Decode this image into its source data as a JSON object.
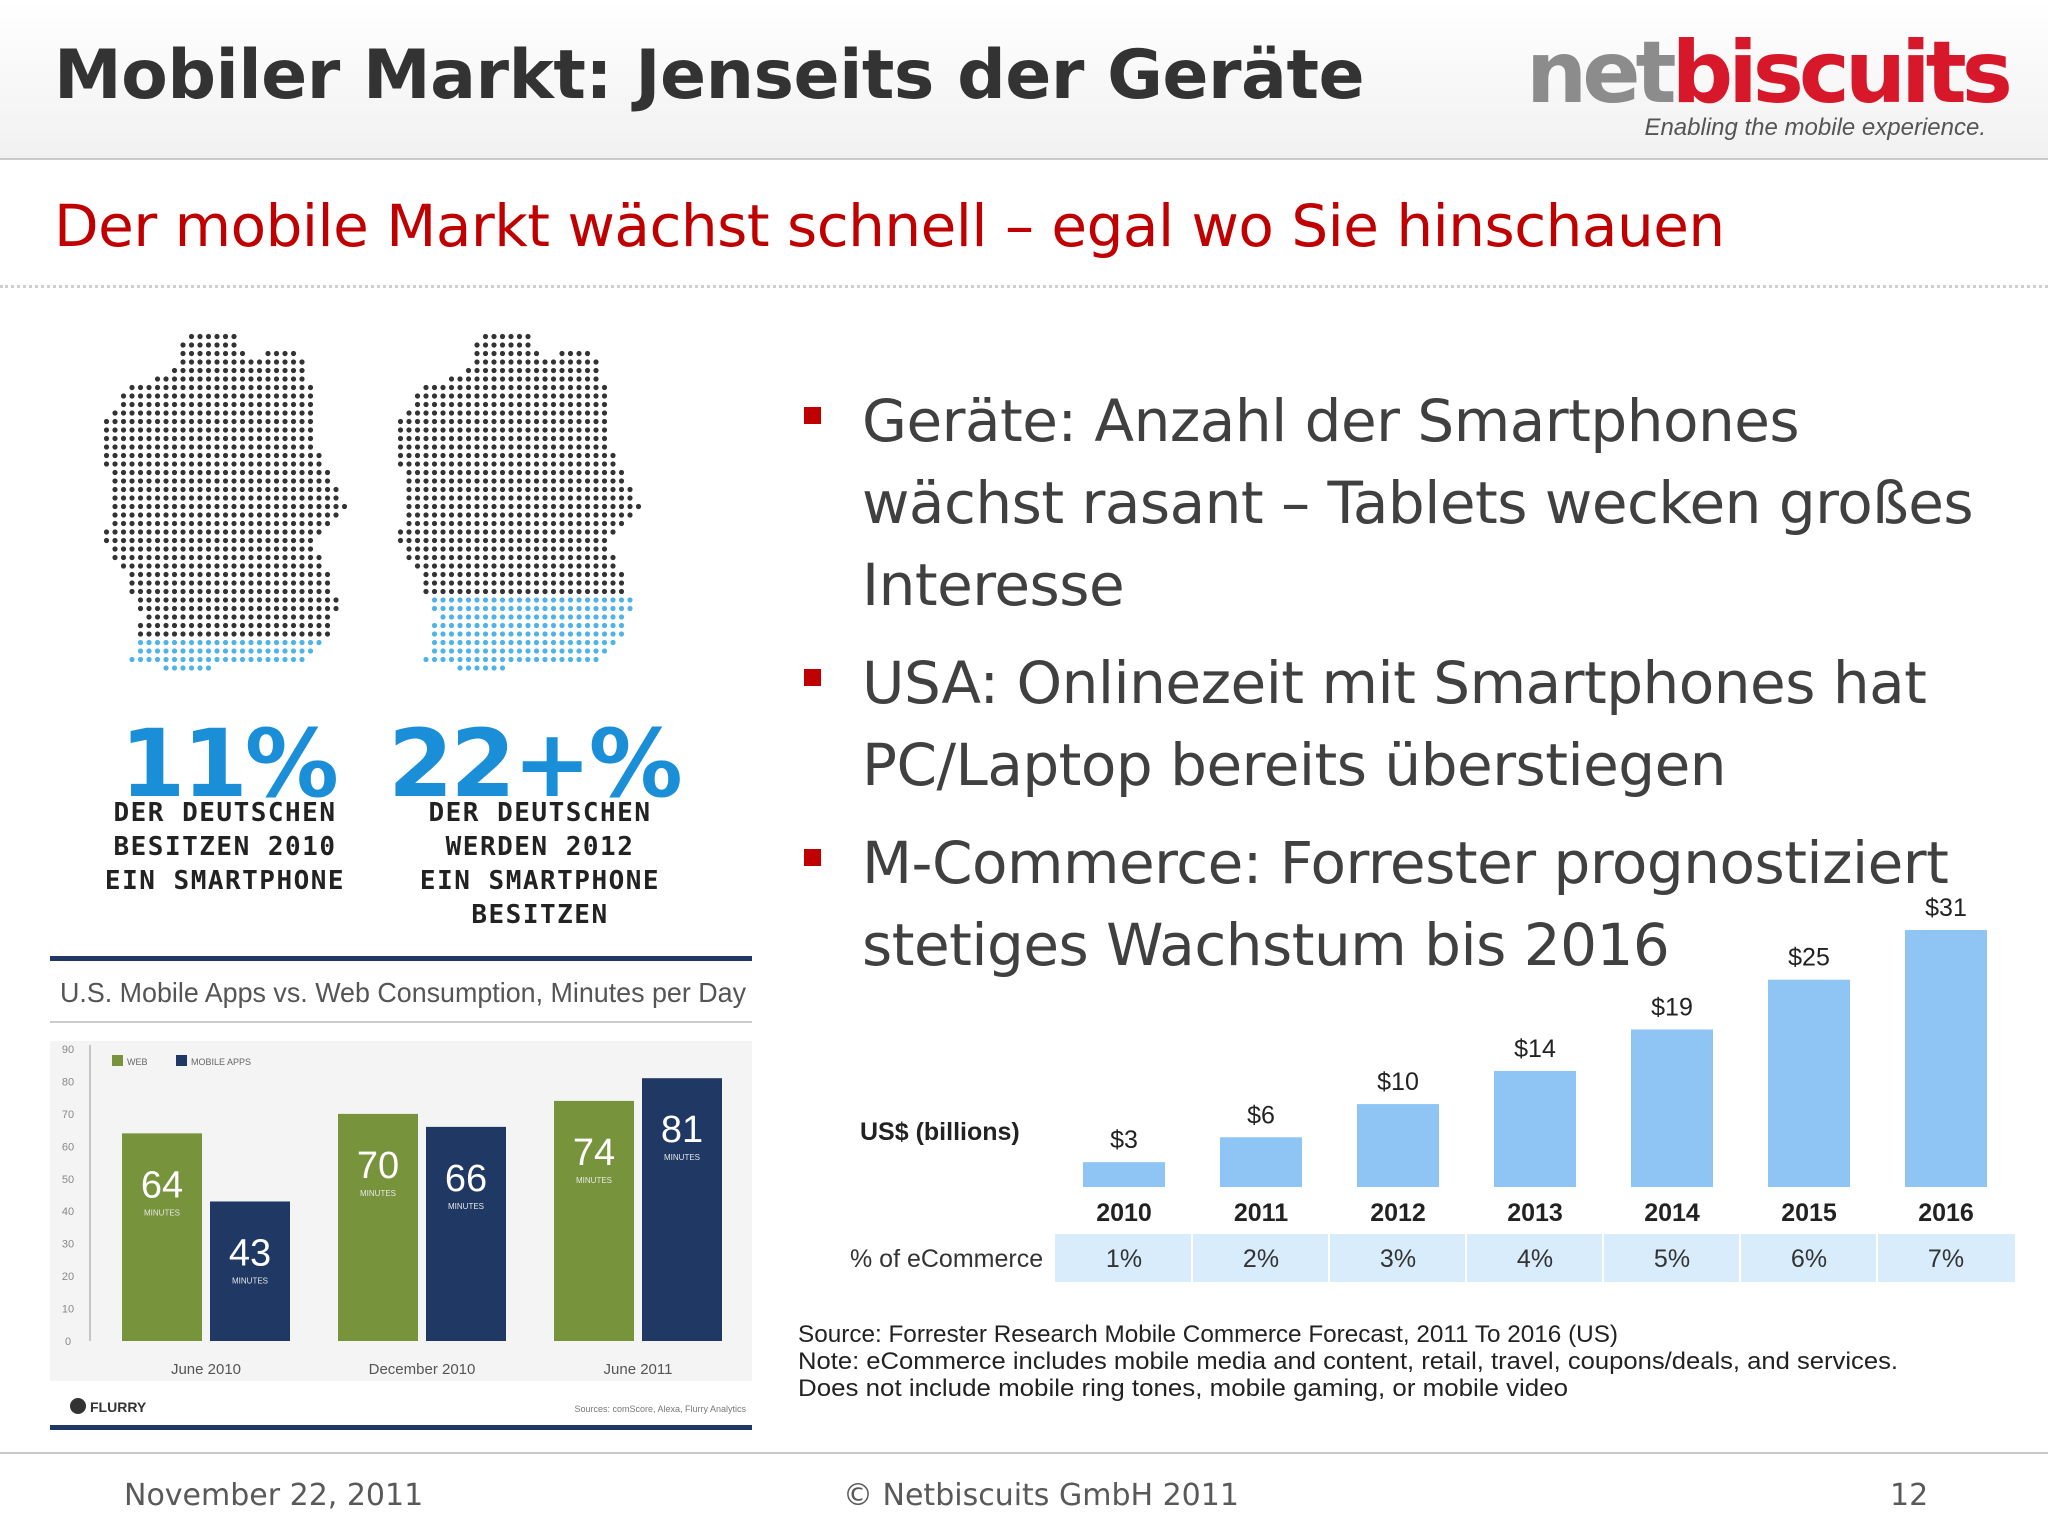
{
  "header": {
    "title": "Mobiler Markt: Jenseits der Geräte",
    "logo_net": "net",
    "logo_biscuits": "biscuits",
    "logo_tagline": "Enabling the mobile experience."
  },
  "subtitle": "Der mobile Markt wächst schnell – egal wo Sie hinschauen",
  "bullets": [
    "Geräte: Anzahl der Smartphones wächst rasant – Tablets wecken großes Interesse",
    "USA: Onlinezeit mit Smartphones hat PC/Laptop bereits überstiegen",
    "M-Commerce: Forrester prognostiziert stetiges Wachstum bis 2016"
  ],
  "germany": {
    "left_percent": "11%",
    "left_caption": [
      "DER DEUTSCHEN",
      "BESITZEN 2010",
      "EIN SMARTPHONE"
    ],
    "left_fill_fraction": 0.11,
    "right_percent": "22+%",
    "right_caption": [
      "DER DEUTSCHEN",
      "WERDEN 2012",
      "EIN SMARTPHONE",
      "BESITZEN"
    ],
    "right_fill_fraction": 0.22,
    "dot_color": "#333333",
    "highlight_color": "#4fb3e8",
    "percent_color": "#1a8fd8"
  },
  "chart_data": [
    {
      "type": "bar",
      "title": "U.S. Mobile Apps vs. Web Consumption, Minutes per Day",
      "categories": [
        "June 2010",
        "December 2010",
        "June 2011"
      ],
      "series": [
        {
          "name": "WEB",
          "values": [
            64,
            70,
            74
          ],
          "color": "#77933c"
        },
        {
          "name": "MOBILE APPS",
          "values": [
            43,
            66,
            81
          ],
          "color": "#1f3864"
        }
      ],
      "value_unit": "MINUTES",
      "ylim": [
        0,
        90
      ],
      "yticks": [
        0,
        10,
        20,
        30,
        40,
        50,
        60,
        70,
        80,
        90
      ],
      "grid": false,
      "legend": "top-left",
      "brand": "FLURRY",
      "source": "Sources: comScore, Alexa, Flurry Analytics"
    },
    {
      "type": "bar",
      "ylabel": "US$ (billions)",
      "categories": [
        "2010",
        "2011",
        "2012",
        "2013",
        "2014",
        "2015",
        "2016"
      ],
      "values": [
        3,
        6,
        10,
        14,
        19,
        25,
        31
      ],
      "value_labels": [
        "$3",
        "$6",
        "$10",
        "$14",
        "$19",
        "$25",
        "$31"
      ],
      "row_label": "% of eCommerce",
      "row_values": [
        "1%",
        "2%",
        "3%",
        "4%",
        "5%",
        "6%",
        "7%"
      ],
      "bar_color": "#8ec5f5",
      "ylim": [
        0,
        31
      ],
      "grid": false,
      "source_lines": [
        "Source: Forrester Research Mobile Commerce Forecast, 2011 To 2016 (US)",
        "Note: eCommerce includes mobile media and content, retail, travel, coupons/deals, and services.",
        "Does not include mobile ring tones, mobile gaming, or mobile video"
      ]
    }
  ],
  "footer": {
    "date": "November 22, 2011",
    "copyright": "© Netbiscuits GmbH 2011",
    "page_number": "12"
  }
}
